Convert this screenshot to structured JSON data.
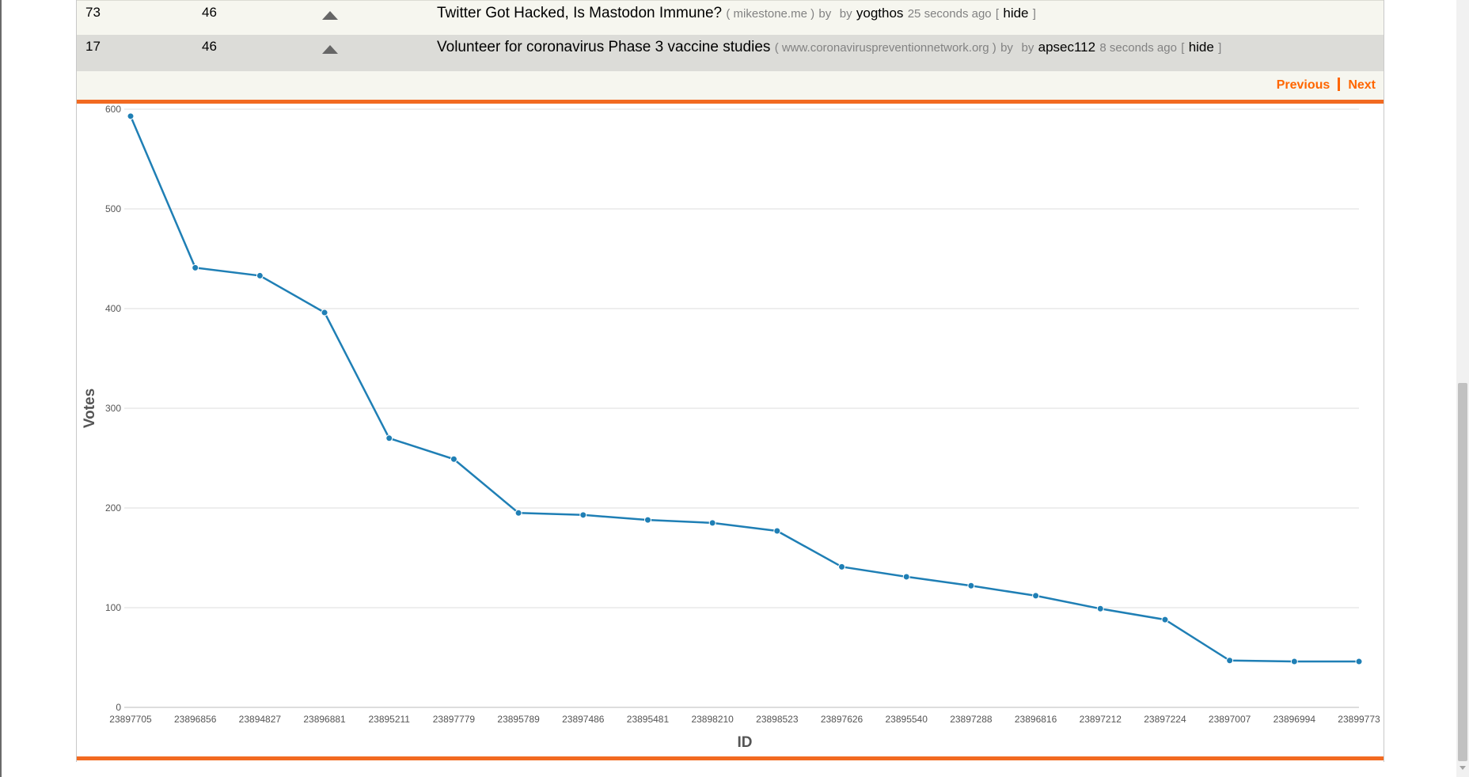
{
  "stories": [
    {
      "rank": "73",
      "votes": "46",
      "title": "Twitter Got Hacked, Is Mastodon Immune?",
      "domain": "( mikestone.me )",
      "by_label": "by",
      "by_label2": "by",
      "user": "yogthos",
      "time": "25 seconds ago",
      "hide_open": "[",
      "hide": "hide",
      "hide_close": "]"
    },
    {
      "rank": "17",
      "votes": "46",
      "title": "Volunteer for coronavirus Phase 3 vaccine studies",
      "domain": "( www.coronaviruspreventionnetwork.org )",
      "by_label": "by",
      "by_label2": "by",
      "user": "apsec112",
      "time": "8 seconds ago",
      "hide_open": "[",
      "hide": "hide",
      "hide_close": "]"
    }
  ],
  "pager": {
    "previous": "Previous",
    "next": "Next"
  },
  "colors": {
    "accent": "#f26a21",
    "line": "#1f7fb5"
  },
  "chart_data": {
    "type": "line",
    "xlabel": "ID",
    "ylabel": "Votes",
    "ylim": [
      0,
      600
    ],
    "yticks": [
      0,
      100,
      200,
      300,
      400,
      500,
      600
    ],
    "grid": true,
    "categories": [
      "23897705",
      "23896856",
      "23894827",
      "23896881",
      "23895211",
      "23897779",
      "23895789",
      "23897486",
      "23895481",
      "23898210",
      "23898523",
      "23897626",
      "23895540",
      "23897288",
      "23896816",
      "23897212",
      "23897224",
      "23897007",
      "23896994",
      "23899773"
    ],
    "values": [
      593,
      441,
      433,
      396,
      270,
      249,
      195,
      193,
      188,
      185,
      177,
      141,
      131,
      122,
      112,
      99,
      88,
      47,
      46,
      46
    ]
  }
}
